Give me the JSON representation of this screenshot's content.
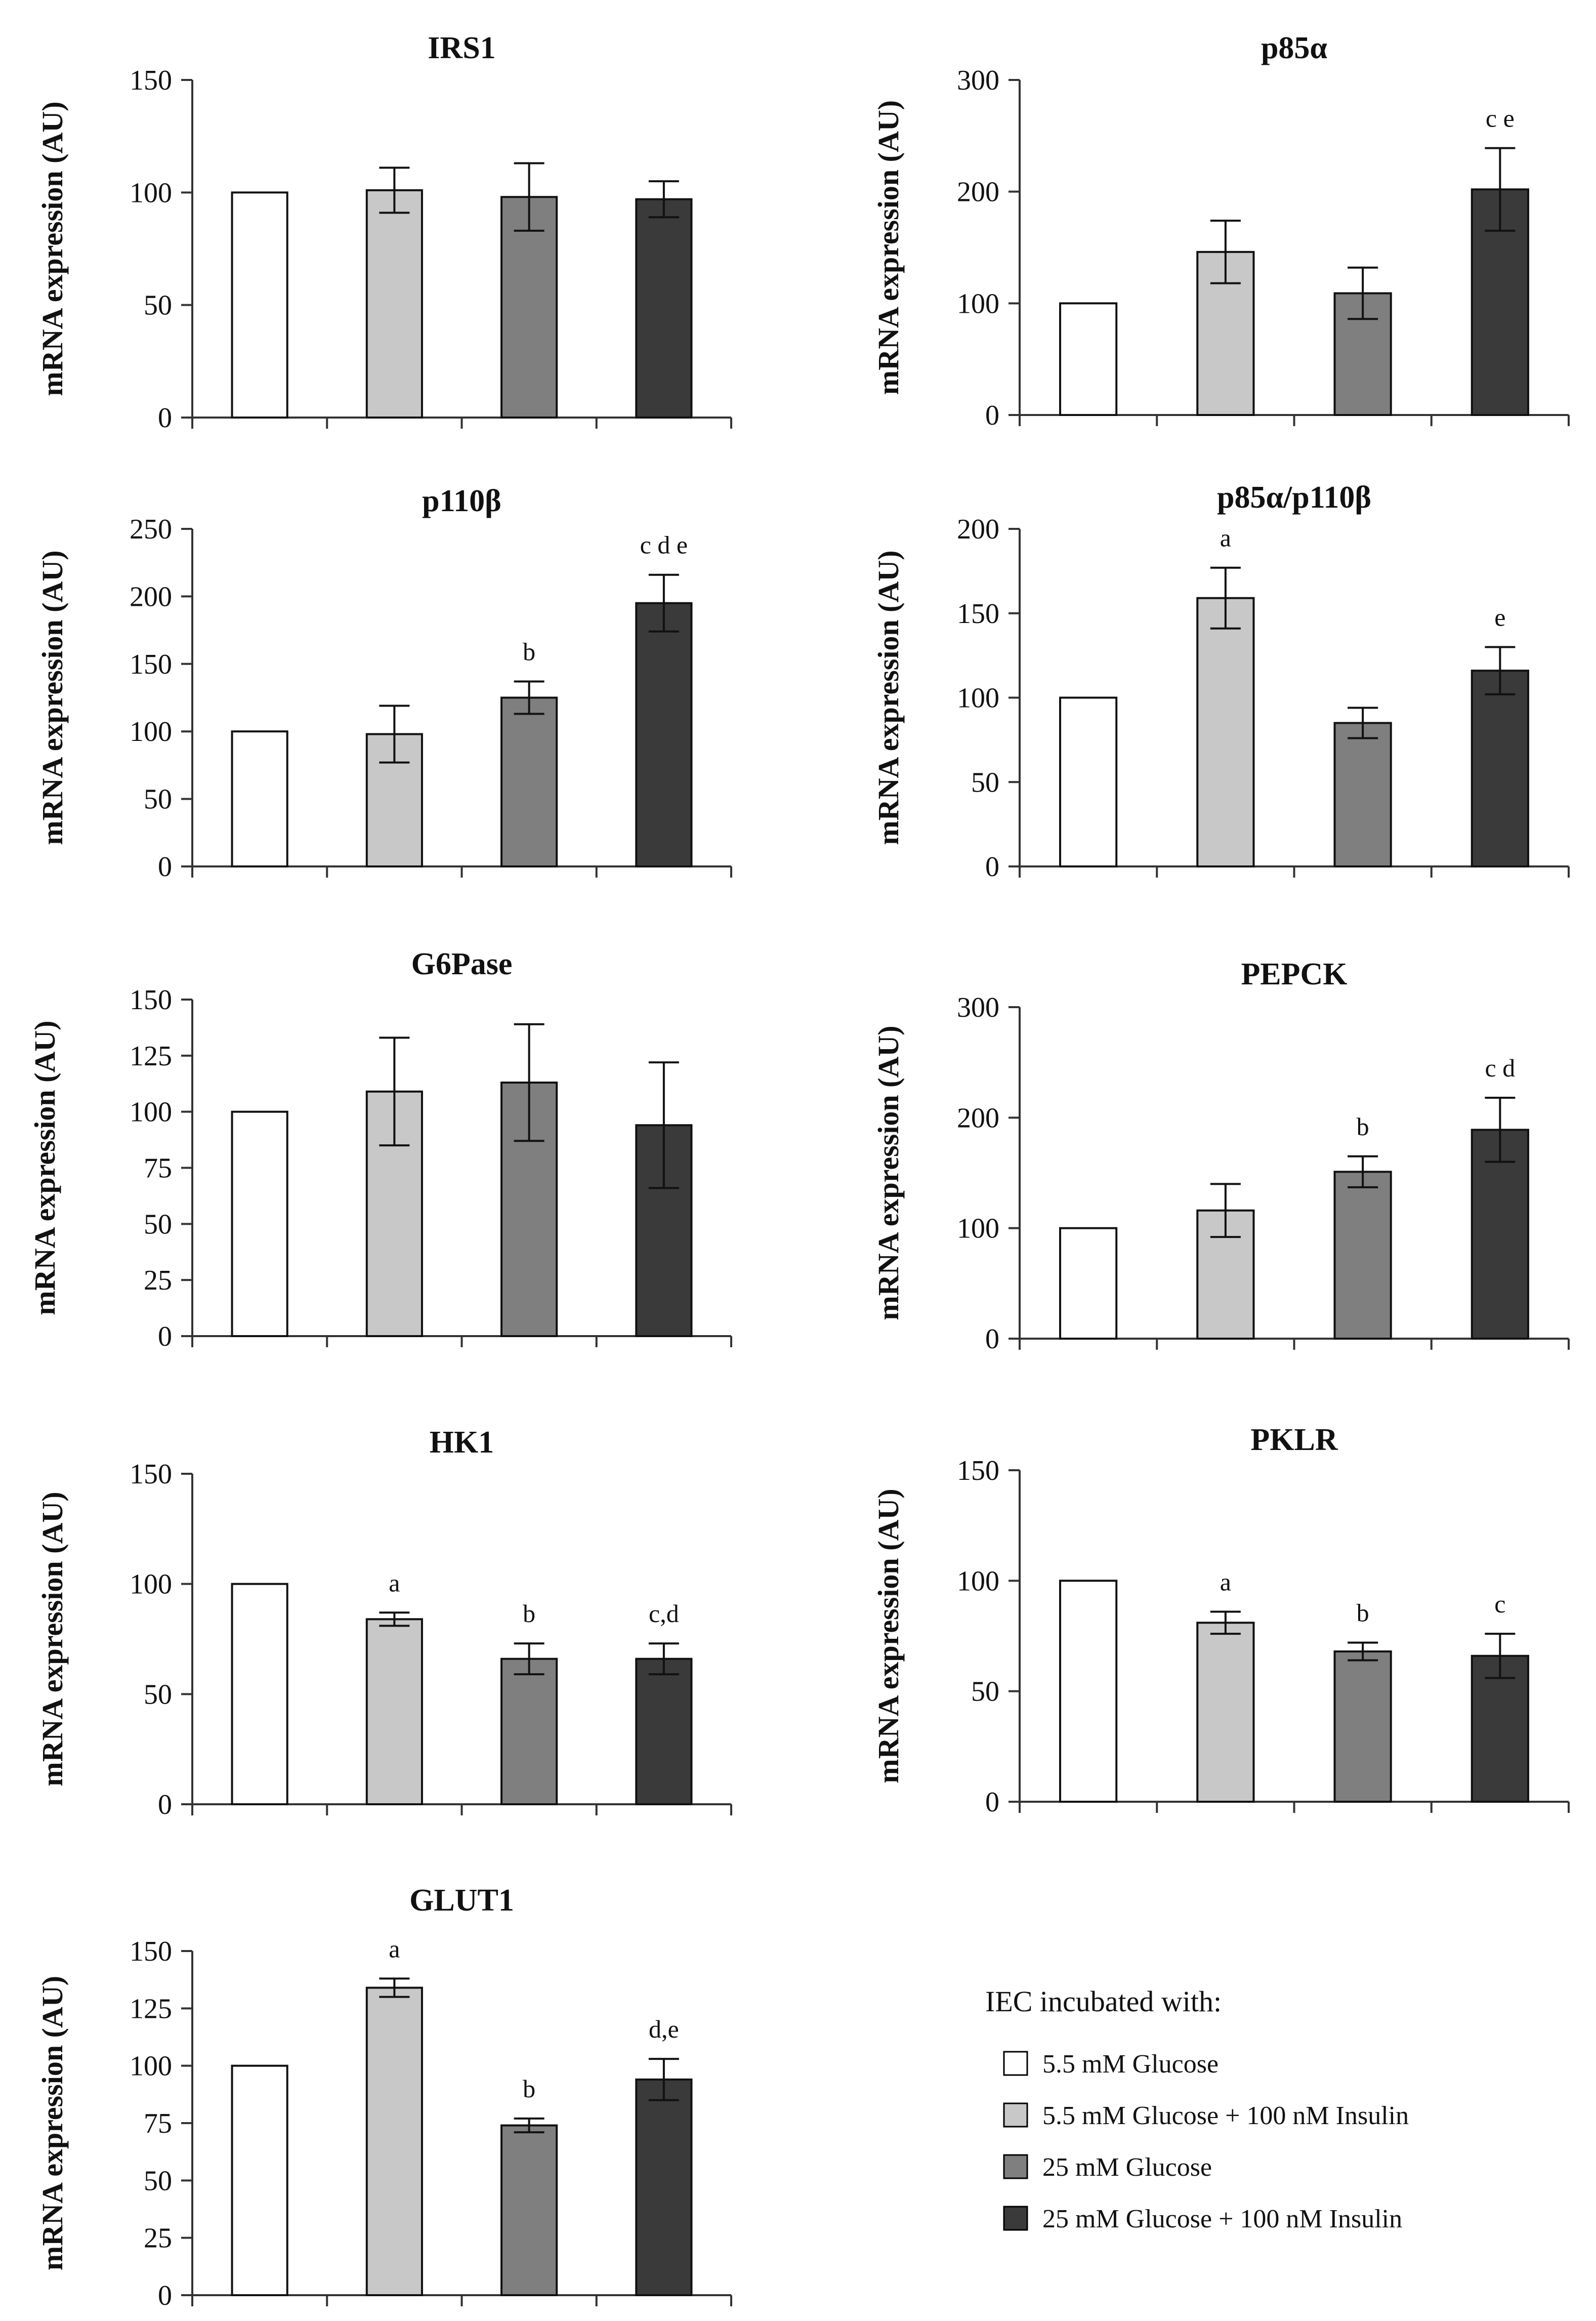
{
  "colors": {
    "5.5 mM Glucose": "#ffffff",
    "5.5 mM Glucose + 100 nM Insulin": "#c8c8c8",
    "25 mM Glucose": "#7f7f7f",
    "25 mM Glucose + 100 nM Insulin": "#3a3a3a"
  },
  "legend": {
    "title": "IEC incubated with:",
    "entries": [
      "5.5 mM Glucose",
      "5.5 mM Glucose + 100 nM Insulin",
      "25 mM Glucose",
      "25 mM Glucose + 100 nM Insulin"
    ]
  },
  "chart_data": [
    {
      "type": "bar",
      "title": "IRS1",
      "ylabel": "mRNA expression (AU)",
      "ylim": [
        0,
        150
      ],
      "yticks": [
        0,
        50,
        100,
        150
      ],
      "categories": [
        "5.5 mM Glucose",
        "5.5 mM Glucose + 100 nM Insulin",
        "25 mM Glucose",
        "25 mM Glucose + 100 nM Insulin"
      ],
      "values": [
        100,
        101,
        98,
        97
      ],
      "errors": [
        0,
        10,
        15,
        8
      ],
      "annotations": [
        "",
        "",
        "",
        ""
      ]
    },
    {
      "type": "bar",
      "title": "p85α",
      "ylabel": "mRNA expression (AU)",
      "ylim": [
        0,
        300
      ],
      "yticks": [
        0,
        100,
        200,
        300
      ],
      "categories": [
        "5.5 mM Glucose",
        "5.5 mM Glucose + 100 nM Insulin",
        "25 mM Glucose",
        "25 mM Glucose + 100 nM Insulin"
      ],
      "values": [
        100,
        146,
        109,
        202
      ],
      "errors": [
        0,
        28,
        23,
        37
      ],
      "annotations": [
        "",
        "",
        "",
        "c e"
      ]
    },
    {
      "type": "bar",
      "title": "p110β",
      "ylabel": "mRNA expression (AU)",
      "ylim": [
        0,
        250
      ],
      "yticks": [
        0,
        50,
        100,
        150,
        200,
        250
      ],
      "categories": [
        "5.5 mM Glucose",
        "5.5 mM Glucose + 100 nM Insulin",
        "25 mM Glucose",
        "25 mM Glucose + 100 nM Insulin"
      ],
      "values": [
        100,
        98,
        125,
        195
      ],
      "errors": [
        0,
        21,
        12,
        21
      ],
      "annotations": [
        "",
        "",
        "b",
        "c d e"
      ]
    },
    {
      "type": "bar",
      "title": "p85α/p110β",
      "ylabel": "mRNA expression (AU)",
      "ylim": [
        0,
        200
      ],
      "yticks": [
        0,
        50,
        100,
        150,
        200
      ],
      "categories": [
        "5.5 mM Glucose",
        "5.5 mM Glucose + 100 nM Insulin",
        "25 mM Glucose",
        "25 mM Glucose + 100 nM Insulin"
      ],
      "values": [
        100,
        159,
        85,
        116
      ],
      "errors": [
        0,
        18,
        9,
        14
      ],
      "annotations": [
        "",
        "a",
        "",
        "e"
      ]
    },
    {
      "type": "bar",
      "title": "G6Pase",
      "ylabel": "mRNA expression (AU)",
      "ylim": [
        0,
        150
      ],
      "yticks": [
        0,
        25,
        50,
        75,
        100,
        125,
        150
      ],
      "categories": [
        "5.5 mM Glucose",
        "5.5 mM Glucose + 100 nM Insulin",
        "25 mM Glucose",
        "25 mM Glucose + 100 nM Insulin"
      ],
      "values": [
        100,
        109,
        113,
        94
      ],
      "errors": [
        0,
        24,
        26,
        28
      ],
      "annotations": [
        "",
        "",
        "",
        ""
      ]
    },
    {
      "type": "bar",
      "title": "PEPCK",
      "ylabel": "mRNA expression (AU)",
      "ylim": [
        0,
        300
      ],
      "yticks": [
        0,
        100,
        200,
        300
      ],
      "categories": [
        "5.5 mM Glucose",
        "5.5 mM Glucose + 100 nM Insulin",
        "25 mM Glucose",
        "25 mM Glucose + 100 nM Insulin"
      ],
      "values": [
        100,
        116,
        151,
        189
      ],
      "errors": [
        0,
        24,
        14,
        29
      ],
      "annotations": [
        "",
        "",
        "b",
        "c d"
      ]
    },
    {
      "type": "bar",
      "title": "HK1",
      "ylabel": "mRNA expression (AU)",
      "ylim": [
        0,
        150
      ],
      "yticks": [
        0,
        50,
        100,
        150
      ],
      "categories": [
        "5.5 mM Glucose",
        "5.5 mM Glucose + 100 nM Insulin",
        "25 mM Glucose",
        "25 mM Glucose + 100 nM Insulin"
      ],
      "values": [
        100,
        84,
        66,
        66
      ],
      "errors": [
        0,
        3,
        7,
        7
      ],
      "annotations": [
        "",
        "a",
        "b",
        "c,d"
      ]
    },
    {
      "type": "bar",
      "title": "PKLR",
      "ylabel": "mRNA expression (AU)",
      "ylim": [
        0,
        150
      ],
      "yticks": [
        0,
        50,
        100,
        150
      ],
      "categories": [
        "5.5 mM Glucose",
        "5.5 mM Glucose + 100 nM Insulin",
        "25 mM Glucose",
        "25 mM Glucose + 100 nM Insulin"
      ],
      "values": [
        100,
        81,
        68,
        66
      ],
      "errors": [
        0,
        5,
        4,
        10
      ],
      "annotations": [
        "",
        "a",
        "b",
        "c"
      ]
    },
    {
      "type": "bar",
      "title": "GLUT1",
      "ylabel": "mRNA expression (AU)",
      "ylim": [
        0,
        150
      ],
      "yticks": [
        0,
        25,
        50,
        75,
        100,
        125,
        150
      ],
      "categories": [
        "5.5 mM Glucose",
        "5.5 mM Glucose + 100 nM Insulin",
        "25 mM Glucose",
        "25 mM Glucose + 100 nM Insulin"
      ],
      "values": [
        100,
        134,
        74,
        94
      ],
      "errors": [
        0,
        4,
        3,
        9
      ],
      "annotations": [
        "",
        "a",
        "b",
        "d,e"
      ]
    }
  ]
}
